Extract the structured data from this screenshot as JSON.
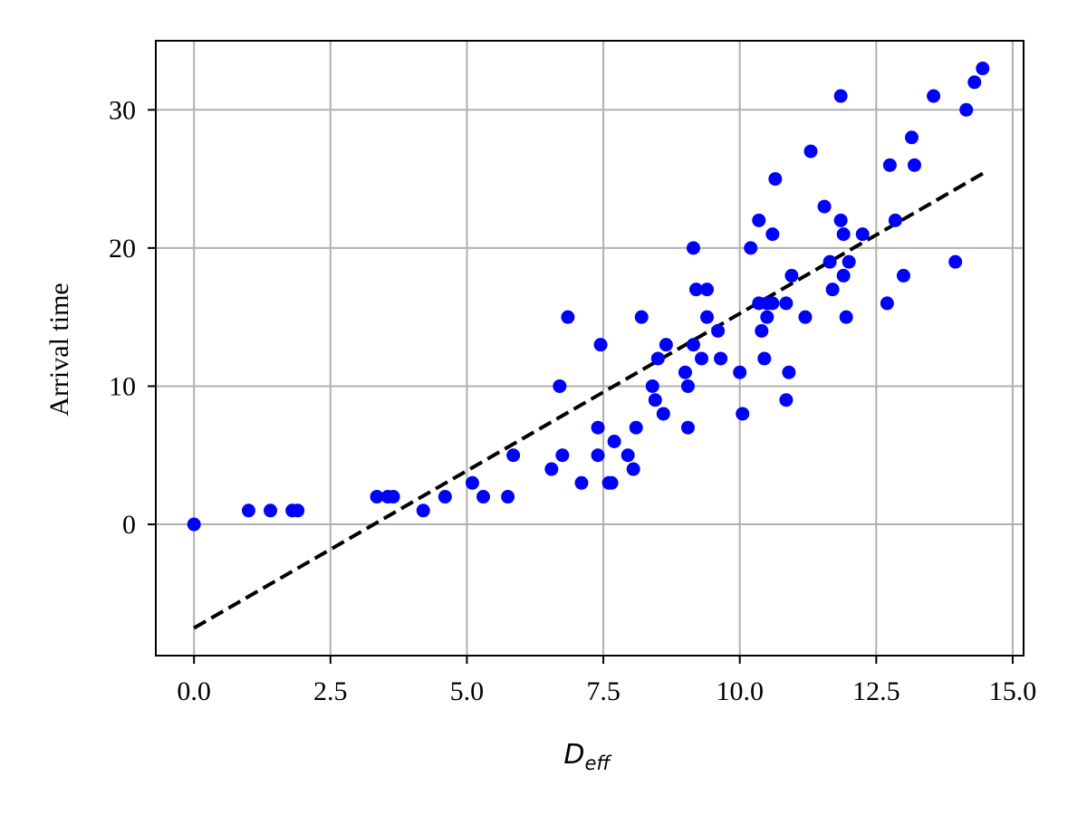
{
  "chart_data": {
    "type": "scatter",
    "xlabel_main": "D",
    "xlabel_sub": "eff",
    "ylabel": "Arrival time",
    "xlim": [
      -0.7,
      15.2
    ],
    "ylim": [
      -9.5,
      35
    ],
    "xticks": [
      0.0,
      2.5,
      5.0,
      7.5,
      10.0,
      12.5,
      15.0
    ],
    "xtick_labels": [
      "0.0",
      "2.5",
      "5.0",
      "7.5",
      "10.0",
      "12.5",
      "15.0"
    ],
    "yticks": [
      0,
      10,
      20,
      30
    ],
    "ytick_labels": [
      "0",
      "10",
      "20",
      "30"
    ],
    "grid": true,
    "point_color": "#0000ff",
    "fit_color": "#000000",
    "points": [
      [
        0.0,
        0
      ],
      [
        1.0,
        1
      ],
      [
        1.4,
        1
      ],
      [
        1.8,
        1
      ],
      [
        1.9,
        1
      ],
      [
        3.35,
        2
      ],
      [
        3.55,
        2
      ],
      [
        3.65,
        2
      ],
      [
        4.2,
        1
      ],
      [
        4.6,
        2
      ],
      [
        5.1,
        3
      ],
      [
        5.3,
        2
      ],
      [
        5.75,
        2
      ],
      [
        5.85,
        5
      ],
      [
        6.55,
        4
      ],
      [
        6.7,
        10
      ],
      [
        6.75,
        5
      ],
      [
        6.85,
        15
      ],
      [
        7.1,
        3
      ],
      [
        7.4,
        7
      ],
      [
        7.4,
        5
      ],
      [
        7.45,
        13
      ],
      [
        7.6,
        3
      ],
      [
        7.65,
        3
      ],
      [
        7.7,
        6
      ],
      [
        7.95,
        5
      ],
      [
        8.05,
        4
      ],
      [
        8.1,
        7
      ],
      [
        8.2,
        15
      ],
      [
        8.4,
        10
      ],
      [
        8.45,
        9
      ],
      [
        8.5,
        12
      ],
      [
        8.6,
        8
      ],
      [
        8.65,
        13
      ],
      [
        9.0,
        11
      ],
      [
        9.05,
        10
      ],
      [
        9.05,
        7
      ],
      [
        9.15,
        13
      ],
      [
        9.15,
        20
      ],
      [
        9.2,
        17
      ],
      [
        9.3,
        12
      ],
      [
        9.4,
        17
      ],
      [
        9.4,
        15
      ],
      [
        9.6,
        14
      ],
      [
        9.65,
        12
      ],
      [
        10.0,
        11
      ],
      [
        10.05,
        8
      ],
      [
        10.2,
        20
      ],
      [
        10.35,
        22
      ],
      [
        10.35,
        16
      ],
      [
        10.4,
        14
      ],
      [
        10.45,
        12
      ],
      [
        10.5,
        15
      ],
      [
        10.5,
        16
      ],
      [
        10.6,
        16
      ],
      [
        10.6,
        21
      ],
      [
        10.65,
        25
      ],
      [
        10.85,
        9
      ],
      [
        10.85,
        16
      ],
      [
        10.9,
        11
      ],
      [
        10.95,
        18
      ],
      [
        11.2,
        15
      ],
      [
        11.3,
        27
      ],
      [
        11.55,
        23
      ],
      [
        11.65,
        19
      ],
      [
        11.7,
        17
      ],
      [
        11.85,
        22
      ],
      [
        11.85,
        31
      ],
      [
        11.9,
        21
      ],
      [
        11.9,
        18
      ],
      [
        11.95,
        15
      ],
      [
        12.0,
        19
      ],
      [
        12.25,
        21
      ],
      [
        12.7,
        16
      ],
      [
        12.75,
        26
      ],
      [
        12.85,
        22
      ],
      [
        13.0,
        18
      ],
      [
        13.15,
        28
      ],
      [
        13.2,
        26
      ],
      [
        13.55,
        31
      ],
      [
        13.95,
        19
      ],
      [
        14.15,
        30
      ],
      [
        14.3,
        32
      ],
      [
        14.45,
        33
      ]
    ],
    "fit_line": {
      "x": [
        0.0,
        14.5
      ],
      "y": [
        -7.5,
        25.5
      ]
    }
  }
}
